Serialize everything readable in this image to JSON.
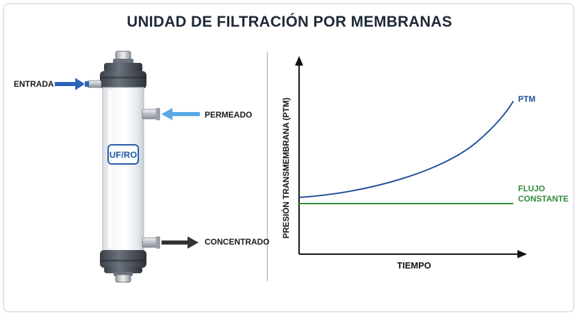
{
  "title": "UNIDAD DE FILTRACIÓN POR MEMBRANAS",
  "module": {
    "badge": "UF/RO",
    "ports": {
      "inlet": "ENTRADA",
      "permeate": "PERMEADO",
      "concentrate": "CONCENTRADO"
    }
  },
  "graph": {
    "ylabel": "PRESIÓN TRANSMEMBRANA (PTM)",
    "xlabel": "TIEMPO",
    "series": {
      "ptm": "PTM",
      "flow_line1": "FLUJO",
      "flow_line2": "CONSTANTE"
    }
  },
  "colors": {
    "ptm": "#1f4e9c",
    "flow": "#2e8b3a",
    "inlet_arrow": "#2b63b8",
    "permeate_arrow": "#5aa9e6",
    "concentrate_arrow": "#333333",
    "badge": "#1f5aa8"
  }
}
